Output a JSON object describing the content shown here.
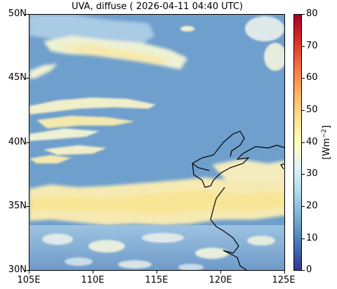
{
  "title": "UVA, diffuse ( 2026-04-11 04:40 UTC)",
  "map": {
    "lat_ticks": [
      "50N",
      "45N",
      "40N",
      "35N",
      "30N"
    ],
    "lon_ticks": [
      "105E",
      "110E",
      "115E",
      "120E",
      "125E"
    ],
    "extent": {
      "lon_min": 105,
      "lon_max": 125,
      "lat_min": 30,
      "lat_max": 50
    }
  },
  "colorbar": {
    "ticks": [
      "80",
      "70",
      "60",
      "50",
      "40",
      "30",
      "20",
      "10",
      "0"
    ],
    "label_prefix": "[Wm",
    "label_exp": "−2",
    "label_suffix": "]",
    "range": [
      0,
      80
    ],
    "colors": [
      "#313695",
      "#4575b4",
      "#74add1",
      "#abd9e9",
      "#e0f3f8",
      "#ffffbf",
      "#fee090",
      "#fdae61",
      "#f46d43",
      "#d73027",
      "#a50026"
    ]
  },
  "colors": {
    "background_field": "#6f9fcc",
    "cloud_light": "#f3f1cf",
    "cloud_yellow": "#f7e9a3",
    "coastline": "#000000"
  }
}
